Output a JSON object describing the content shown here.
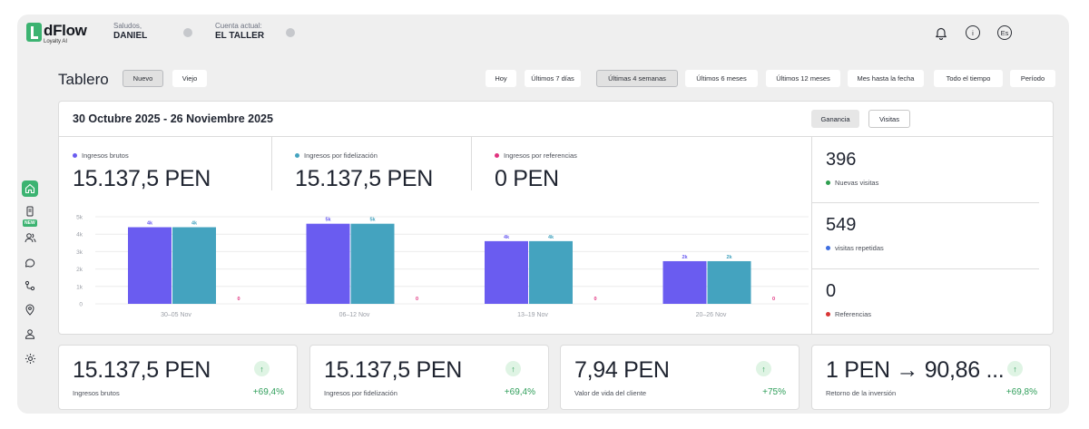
{
  "brand": {
    "name": "dFlow",
    "sub": "Loyalty AI"
  },
  "header": {
    "greeting_label": "Saludos,",
    "user_name": "DANIEL",
    "account_label": "Cuenta actual:",
    "account_name": "EL TALLER",
    "language": "Es",
    "info_icon_text": "i"
  },
  "dashboard": {
    "title": "Tablero",
    "view_tabs": [
      "Nuevo",
      "Viejo"
    ],
    "selected_view": "Nuevo",
    "periods": [
      "Hoy",
      "Últimos 7 días",
      "Últimas 4 semanas",
      "Últimos 6 meses",
      "Últimos 12 meses",
      "Mes hasta la fecha",
      "Todo el tiempo",
      "Período"
    ],
    "selected_period": "Últimas 4 semanas"
  },
  "panel": {
    "date_range": "30 Octubre 2025 - 26 Noviembre 2025",
    "toggle": [
      "Ganancia",
      "Visitas"
    ],
    "selected_toggle": "Ganancia",
    "metrics": [
      {
        "label": "Ingresos brutos",
        "value": "15.137,5 PEN",
        "color": "#6a5cf0"
      },
      {
        "label": "Ingresos por fidelización",
        "value": "15.137,5 PEN",
        "color": "#44a3bf"
      },
      {
        "label": "Ingresos por referencias",
        "value": "0 PEN",
        "color": "#e0327e"
      }
    ],
    "side_stats": [
      {
        "value": "396",
        "label": "Nuevas visitas",
        "color": "#2e9e4f"
      },
      {
        "value": "549",
        "label": "visitas repetidas",
        "color": "#3e6ee0"
      },
      {
        "value": "0",
        "label": "Referencias",
        "color": "#d93535"
      }
    ]
  },
  "chart_data": {
    "type": "bar",
    "categories": [
      "30–05 Nov",
      "06–12 Nov",
      "13–19 Nov",
      "20–26 Nov"
    ],
    "series": [
      {
        "name": "Ingresos brutos",
        "values": [
          4400,
          4600,
          3600,
          2450
        ],
        "labels": [
          "4k",
          "5k",
          "4k",
          "2k"
        ],
        "color": "#6a5cf0"
      },
      {
        "name": "Ingresos por fidelización",
        "values": [
          4400,
          4600,
          3600,
          2450
        ],
        "labels": [
          "4k",
          "5k",
          "4k",
          "2k"
        ],
        "color": "#44a3bf"
      },
      {
        "name": "Ingresos por referencias",
        "values": [
          0,
          0,
          0,
          0
        ],
        "labels": [
          "0",
          "0",
          "0",
          "0"
        ],
        "color": "#e0327e"
      }
    ],
    "y_ticks": [
      "0",
      "1k",
      "2k",
      "3k",
      "4k",
      "5k"
    ],
    "ylim": [
      0,
      5000
    ],
    "grid": true
  },
  "cards": [
    {
      "value": "15.137,5 PEN",
      "label": "Ingresos brutos",
      "change": "+69,4%"
    },
    {
      "value": "15.137,5 PEN",
      "label": "Ingresos por fidelización",
      "change": "+69,4%"
    },
    {
      "value": "7,94 PEN",
      "label": "Valor de vida del cliente",
      "change": "+75%"
    },
    {
      "value": "1 PEN → 90,86 ...",
      "label": "Retorno de la inversión",
      "change": "+69,8%"
    }
  ],
  "colors": {
    "accent": "#3cb371",
    "positive": "#2f9e5a"
  },
  "icons": {
    "rail": [
      "home-icon",
      "receipt-icon",
      "users-icon",
      "chat-icon",
      "flow-icon",
      "location-icon",
      "user-icon",
      "settings-icon"
    ],
    "top": [
      "bell-icon",
      "info-icon",
      "language-icon"
    ],
    "card": "arrow-up-icon"
  },
  "rail_badge": "NEW"
}
